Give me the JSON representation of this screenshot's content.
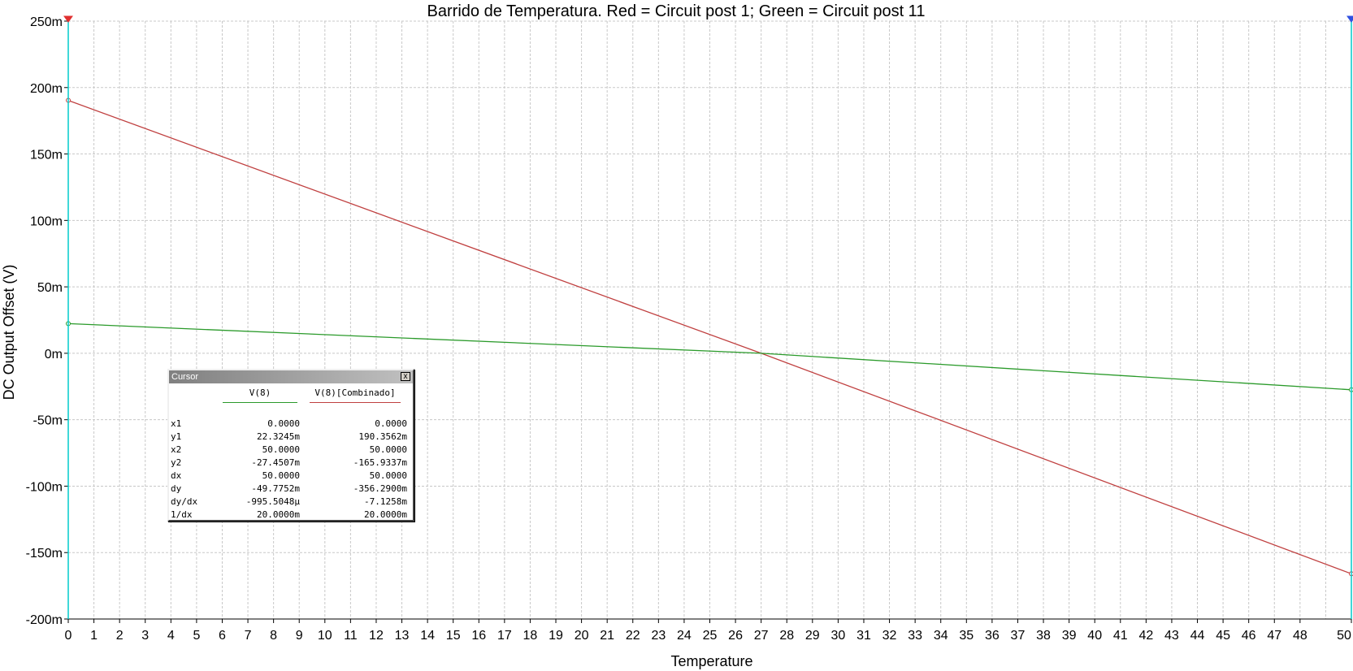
{
  "chart_data": {
    "type": "line",
    "title": "Barrido de Temperatura. Red = Circuit post 1; Green = Circuit post 11",
    "xlabel": "Temperature",
    "ylabel": "DC Output Offset (V)",
    "xlim": [
      0,
      50
    ],
    "ylim": [
      -0.2,
      0.25
    ],
    "x_ticks": [
      0,
      1,
      2,
      3,
      4,
      5,
      6,
      7,
      8,
      9,
      10,
      11,
      12,
      13,
      14,
      15,
      16,
      17,
      18,
      19,
      20,
      21,
      22,
      23,
      24,
      25,
      26,
      27,
      28,
      29,
      30,
      31,
      32,
      33,
      34,
      35,
      36,
      37,
      38,
      39,
      40,
      41,
      42,
      43,
      44,
      45,
      46,
      47,
      48,
      50
    ],
    "y_ticks": [
      {
        "value": 0.25,
        "label": "250m"
      },
      {
        "value": 0.2,
        "label": "200m"
      },
      {
        "value": 0.15,
        "label": "150m"
      },
      {
        "value": 0.1,
        "label": "100m"
      },
      {
        "value": 0.05,
        "label": "50m"
      },
      {
        "value": 0,
        "label": "0m"
      },
      {
        "value": -0.05,
        "label": "-50m"
      },
      {
        "value": -0.1,
        "label": "-100m"
      },
      {
        "value": -0.15,
        "label": "-150m"
      },
      {
        "value": -0.2,
        "label": "-200m"
      }
    ],
    "grid": true,
    "series": [
      {
        "color": "#c04040",
        "x": [
          0,
          27,
          50
        ],
        "y": [
          0.1903562,
          0.0,
          -0.1659337
        ]
      },
      {
        "color": "#2a9a2a",
        "x": [
          0,
          27,
          50
        ],
        "y": [
          0.0223245,
          0.0,
          -0.0274507
        ]
      }
    ],
    "cursor_lines": {
      "x1": 0,
      "x2": 50,
      "color": "#00cccc"
    }
  },
  "cursor": {
    "title": "Cursor",
    "close": "x",
    "col1": "V(8)",
    "col2": "V(8)[Combinado]",
    "col1_color": "#2a9a2a",
    "col2_color": "#c04040",
    "rows": [
      {
        "label": "x1",
        "v1": "0.0000",
        "v2": "0.0000"
      },
      {
        "label": "y1",
        "v1": "22.3245m",
        "v2": "190.3562m"
      },
      {
        "label": "x2",
        "v1": "50.0000",
        "v2": "50.0000"
      },
      {
        "label": "y2",
        "v1": "-27.4507m",
        "v2": "-165.9337m"
      },
      {
        "label": "dx",
        "v1": "50.0000",
        "v2": "50.0000"
      },
      {
        "label": "dy",
        "v1": "-49.7752m",
        "v2": "-356.2900m"
      },
      {
        "label": "dy/dx",
        "v1": "-995.5048µ",
        "v2": "-7.1258m"
      },
      {
        "label": "1/dx",
        "v1": "20.0000m",
        "v2": "20.0000m"
      }
    ]
  }
}
